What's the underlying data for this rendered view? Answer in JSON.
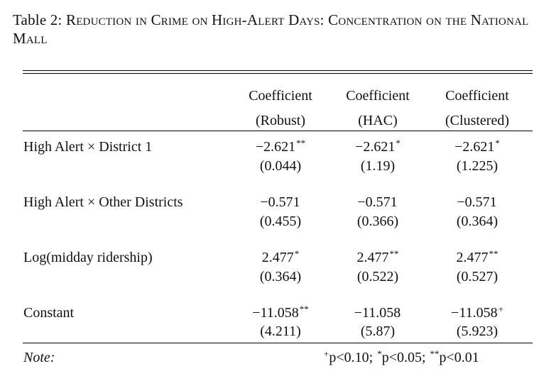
{
  "caption": {
    "prefix": "Table 2: ",
    "title": "Reduction in Crime on High-Alert Days: Concentration on the National Mall"
  },
  "columns": [
    {
      "line1": "Coefficient",
      "line2": "(Robust)"
    },
    {
      "line1": "Coefficient",
      "line2": "(HAC)"
    },
    {
      "line1": "Coefficient",
      "line2": "(Clustered)"
    }
  ],
  "rows": [
    {
      "label": "High Alert × District 1",
      "coef": [
        {
          "v": "−2.621",
          "s": "**"
        },
        {
          "v": "−2.621",
          "s": "*"
        },
        {
          "v": "−2.621",
          "s": "*"
        }
      ],
      "se": [
        "(0.044)",
        "(1.19)",
        "(1.225)"
      ]
    },
    {
      "label": "High Alert × Other Districts",
      "coef": [
        {
          "v": "−0.571",
          "s": ""
        },
        {
          "v": "−0.571",
          "s": ""
        },
        {
          "v": "−0.571",
          "s": ""
        }
      ],
      "se": [
        "(0.455)",
        "(0.366)",
        "(0.364)"
      ]
    },
    {
      "label": "Log(midday ridership)",
      "coef": [
        {
          "v": "2.477",
          "s": "*"
        },
        {
          "v": "2.477",
          "s": "**"
        },
        {
          "v": "2.477",
          "s": "**"
        }
      ],
      "se": [
        "(0.364)",
        "(0.522)",
        "(0.527)"
      ]
    },
    {
      "label": "Constant",
      "coef": [
        {
          "v": "−11.058",
          "s": "**"
        },
        {
          "v": "−11.058",
          "s": ""
        },
        {
          "v": "−11.058",
          "s": "+"
        }
      ],
      "se": [
        "(4.211)",
        "(5.87)",
        "(5.923)"
      ]
    }
  ],
  "note": {
    "label": "Note:",
    "sig_plus": "+",
    "sig_plus_text": "p<0.10; ",
    "sig_one": "*",
    "sig_one_text": "p<0.05; ",
    "sig_two": "**",
    "sig_two_text": "p<0.01"
  }
}
